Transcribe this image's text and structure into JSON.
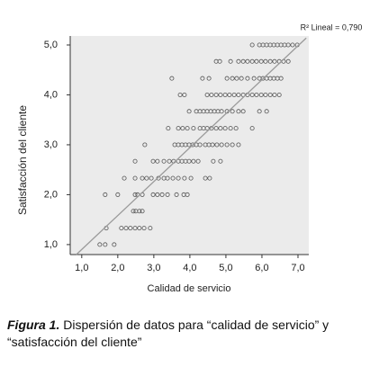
{
  "chart_data": {
    "type": "scatter",
    "annotation": "R² Lineal = 0,790",
    "xlabel": "Calidad de servicio",
    "ylabel": "Satisfacción del cliente",
    "xlim": [
      0.68,
      7.3
    ],
    "ylim": [
      0.8,
      5.18
    ],
    "xticks": [
      {
        "value": 1,
        "label": "1,0"
      },
      {
        "value": 2,
        "label": "2,0"
      },
      {
        "value": 3,
        "label": "3,0"
      },
      {
        "value": 4,
        "label": "4,0"
      },
      {
        "value": 5,
        "label": "5,0"
      },
      {
        "value": 6,
        "label": "6,0"
      },
      {
        "value": 7,
        "label": "7,0"
      }
    ],
    "yticks": [
      {
        "value": 1,
        "label": "1,0"
      },
      {
        "value": 2,
        "label": "2,0"
      },
      {
        "value": 3,
        "label": "3,0"
      },
      {
        "value": 4,
        "label": "4,0"
      },
      {
        "value": 5,
        "label": "5,0"
      }
    ],
    "background": "#ebebeb",
    "trendline": {
      "color": "#9a9a9a",
      "x": [
        0.85,
        7.23
      ],
      "y": [
        0.8,
        5.14
      ]
    },
    "series": [
      {
        "color": "#555555",
        "x": [
          1.5,
          1.65,
          1.9,
          1.68,
          2.1,
          2.23,
          2.35,
          2.48,
          2.6,
          2.73,
          2.9,
          2.43,
          2.5,
          2.6,
          2.68,
          1.65,
          2.0,
          2.48,
          2.55,
          2.68,
          2.98,
          3.1,
          3.23,
          3.38,
          3.63,
          3.83,
          3.93,
          2.18,
          2.48,
          2.68,
          2.8,
          2.93,
          3.13,
          3.28,
          3.38,
          3.53,
          3.68,
          3.85,
          4.03,
          4.43,
          4.55,
          2.48,
          2.98,
          3.1,
          3.28,
          3.43,
          3.55,
          3.68,
          3.78,
          3.88,
          3.98,
          4.1,
          4.23,
          4.65,
          4.85,
          2.75,
          3.58,
          3.68,
          3.78,
          3.88,
          3.98,
          4.08,
          4.18,
          4.28,
          4.43,
          4.53,
          4.63,
          4.75,
          4.88,
          5.03,
          5.18,
          5.35,
          3.4,
          3.68,
          3.8,
          3.93,
          4.1,
          4.28,
          4.38,
          4.48,
          4.6,
          4.73,
          4.85,
          4.98,
          5.13,
          5.28,
          5.73,
          3.98,
          4.18,
          4.28,
          4.38,
          4.48,
          4.58,
          4.68,
          4.78,
          4.88,
          5.03,
          5.18,
          5.35,
          5.48,
          5.93,
          6.13,
          3.73,
          3.85,
          4.48,
          4.6,
          4.73,
          4.85,
          4.98,
          5.1,
          5.23,
          5.35,
          5.48,
          5.6,
          5.73,
          5.85,
          5.98,
          6.1,
          6.23,
          6.35,
          6.48,
          3.5,
          4.35,
          4.53,
          5.03,
          5.18,
          5.3,
          5.43,
          5.6,
          5.78,
          5.93,
          6.03,
          6.13,
          6.23,
          6.33,
          6.43,
          6.53,
          4.73,
          4.83,
          5.13,
          5.35,
          5.48,
          5.6,
          5.73,
          5.85,
          5.98,
          6.1,
          6.23,
          6.35,
          6.48,
          6.6,
          6.73,
          5.73,
          5.93,
          6.03,
          6.13,
          6.23,
          6.33,
          6.43,
          6.53,
          6.63,
          6.73,
          6.85,
          6.98
        ],
        "y": [
          1,
          1,
          1,
          1.33,
          1.33,
          1.33,
          1.33,
          1.33,
          1.33,
          1.33,
          1.33,
          1.67,
          1.67,
          1.67,
          1.67,
          2,
          2,
          2,
          2,
          2,
          2,
          2,
          2,
          2,
          2,
          2,
          2,
          2.33,
          2.33,
          2.33,
          2.33,
          2.33,
          2.33,
          2.33,
          2.33,
          2.33,
          2.33,
          2.33,
          2.33,
          2.33,
          2.33,
          2.67,
          2.67,
          2.67,
          2.67,
          2.67,
          2.67,
          2.67,
          2.67,
          2.67,
          2.67,
          2.67,
          2.67,
          2.67,
          2.67,
          3,
          3,
          3,
          3,
          3,
          3,
          3,
          3,
          3,
          3,
          3,
          3,
          3,
          3,
          3,
          3,
          3,
          3.33,
          3.33,
          3.33,
          3.33,
          3.33,
          3.33,
          3.33,
          3.33,
          3.33,
          3.33,
          3.33,
          3.33,
          3.33,
          3.33,
          3.33,
          3.67,
          3.67,
          3.67,
          3.67,
          3.67,
          3.67,
          3.67,
          3.67,
          3.67,
          3.67,
          3.67,
          3.67,
          3.67,
          3.67,
          3.67,
          4,
          4,
          4,
          4,
          4,
          4,
          4,
          4,
          4,
          4,
          4,
          4,
          4,
          4,
          4,
          4,
          4,
          4,
          4,
          4.33,
          4.33,
          4.33,
          4.33,
          4.33,
          4.33,
          4.33,
          4.33,
          4.33,
          4.33,
          4.33,
          4.33,
          4.33,
          4.33,
          4.33,
          4.33,
          4.67,
          4.67,
          4.67,
          4.67,
          4.67,
          4.67,
          4.67,
          4.67,
          4.67,
          4.67,
          4.67,
          4.67,
          4.67,
          4.67,
          4.67,
          5,
          5,
          5,
          5,
          5,
          5,
          5,
          5,
          5,
          5,
          5,
          5
        ]
      }
    ]
  },
  "caption": {
    "label": "Figura 1.",
    "text": "Dispersión de datos para “calidad de servicio” y “satisfacción del cliente”"
  }
}
